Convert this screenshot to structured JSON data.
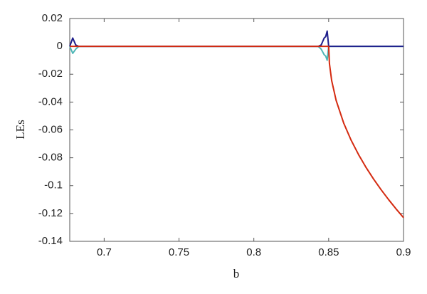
{
  "chart_data": {
    "type": "line",
    "xlabel": "b",
    "ylabel": "LEs",
    "x": [
      0.677,
      0.679,
      0.681,
      0.683,
      0.7,
      0.75,
      0.8,
      0.843,
      0.845,
      0.847,
      0.848,
      0.849,
      0.85,
      0.8505,
      0.852,
      0.855,
      0.86,
      0.865,
      0.87,
      0.875,
      0.88,
      0.885,
      0.89,
      0.895,
      0.9
    ],
    "series": [
      {
        "color": "#4db6b6",
        "values": [
          0,
          -0.005,
          -0.002,
          0,
          0,
          0,
          0,
          0,
          -0.002,
          -0.006,
          -0.007,
          -0.01,
          0,
          0,
          0,
          0,
          0,
          0,
          0,
          0,
          0,
          0,
          0,
          0,
          0
        ]
      },
      {
        "color": "#1f1f8c",
        "values": [
          0,
          0.006,
          0.001,
          0,
          0,
          0,
          0,
          0,
          0.001,
          0.006,
          0.007,
          0.011,
          0,
          0,
          0,
          0,
          0,
          0,
          0,
          0,
          0,
          0,
          0,
          0,
          0
        ]
      },
      {
        "color": "#d42a10",
        "values": [
          0,
          0,
          0,
          0,
          0,
          0,
          0,
          0,
          0,
          0,
          0,
          0,
          0,
          -0.0123,
          -0.0246,
          -0.0389,
          -0.055,
          -0.0674,
          -0.0778,
          -0.087,
          -0.0953,
          -0.1029,
          -0.11,
          -0.1167,
          -0.123
        ]
      }
    ],
    "xlim": [
      0.677,
      0.9
    ],
    "xticks": [
      0.7,
      0.75,
      0.8,
      0.85,
      0.9
    ],
    "ylim": [
      -0.14,
      0.02
    ],
    "yticks": [
      0.02,
      0,
      -0.02,
      -0.04,
      -0.06,
      -0.08,
      -0.1,
      -0.12,
      -0.14
    ],
    "grid": false
  }
}
